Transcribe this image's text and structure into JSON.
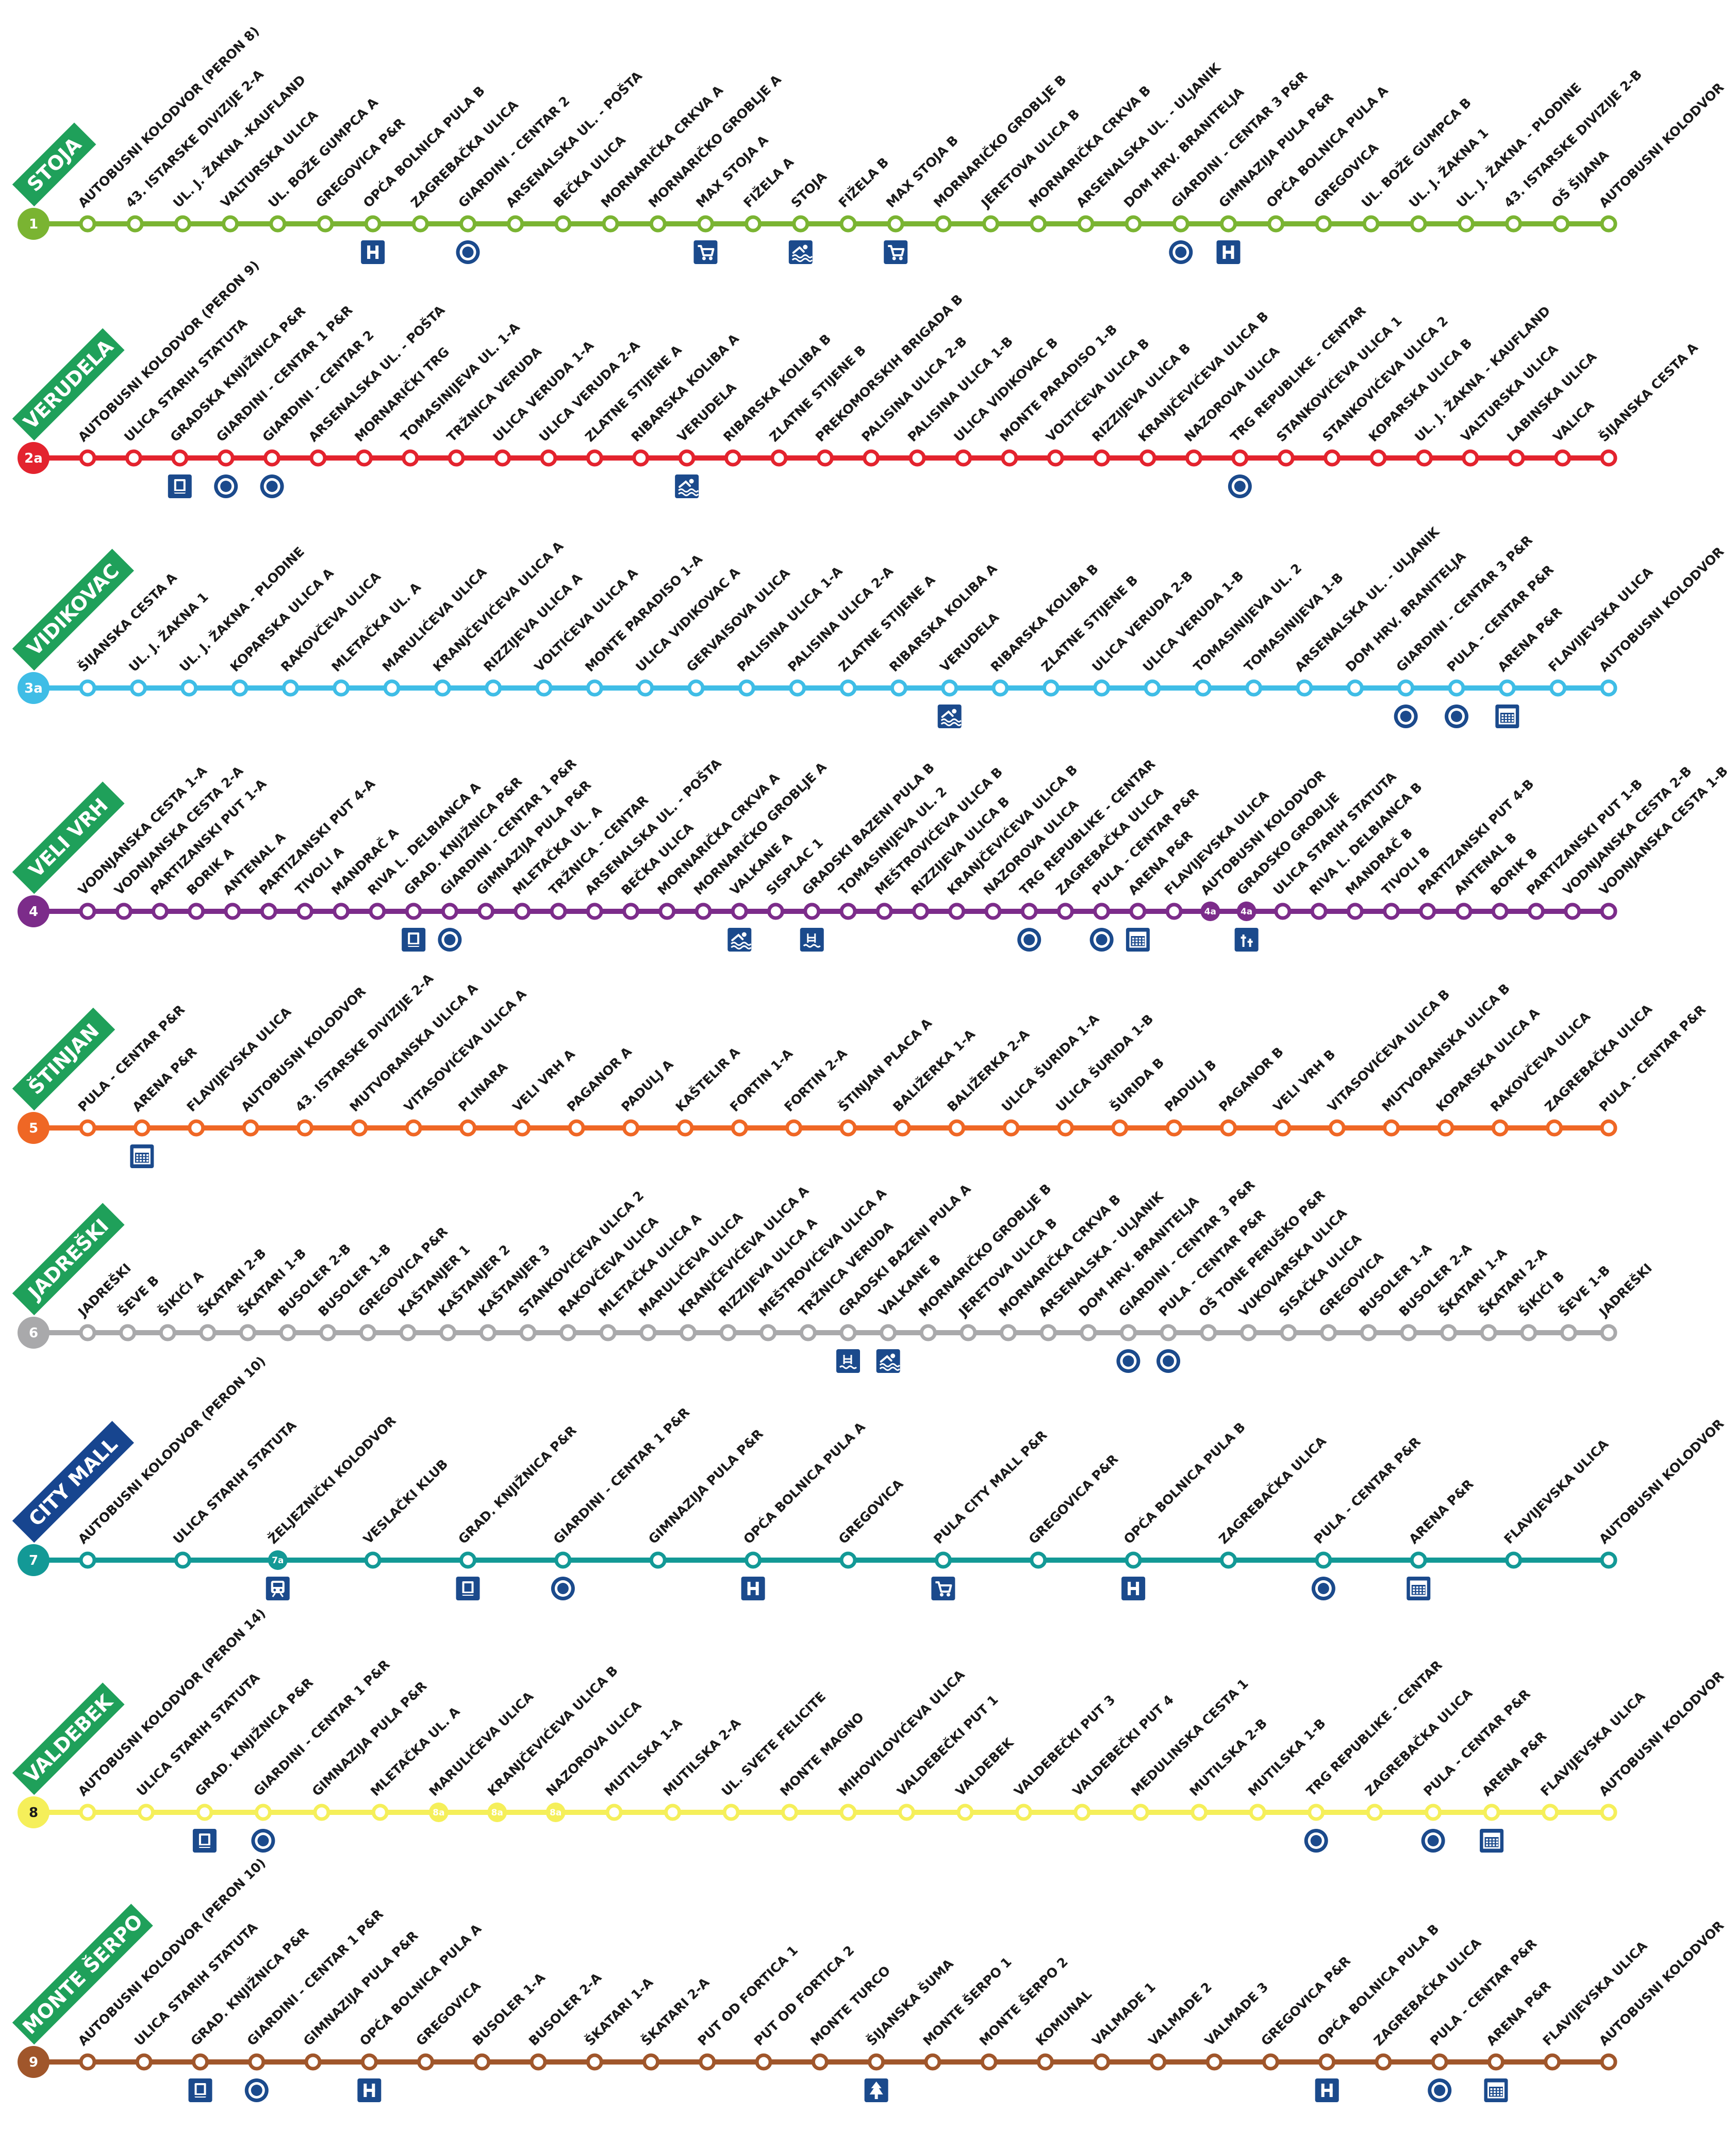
{
  "routes": [
    {
      "number": "1",
      "name": "STOJA",
      "color": "#7ab432",
      "banner_color": "#1fa05a",
      "num_text_color": "#ffffff",
      "stops": [
        "AUTOBUSNI KOLODVOR (PERON 8)",
        "43. ISTARSKE DIVIZIJE 2-A",
        "UL. J. ŽAKNA -KAUFLAND",
        "VALTURSKA ULICA",
        "UL. BOŽE GUMPCA A",
        "GREGOVICA P&R",
        "OPĆA BOLNICA PULA B",
        "ZAGREBAČKA ULICA",
        "GIARDINI - CENTAR 2",
        "ARSENALSKA UL. - POŠTA",
        "BEČKA ULICA",
        "MORNARIČKA CRKVA A",
        "MORNARIČKO GROBLJE A",
        "MAX STOJA A",
        "FIŽELA A",
        "STOJA",
        "FIŽELA B",
        "MAX STOJA B",
        "MORNARIČKO GROBLJE B",
        "JERETOVA ULICA B",
        "MORNARIČKA CRKVA B",
        "ARSENALSKA UL. - ULJANIK",
        "DOM HRV. BRANITELJA",
        "GIARDINI - CENTAR 3 P&R",
        "GIMNAZIJA PULA P&R",
        "OPĆA BOLNICA PULA A",
        "GREGOVICA",
        "UL. BOŽE GUMPCA B",
        "UL. J. ŽAKNA 1",
        "UL. J. ŽAKNA - PLODINE",
        "43. ISTARSKE DIVIZIJE 2-B",
        "OŠ ŠIJANA",
        "AUTOBUSNI KOLODVOR"
      ],
      "badges": [],
      "icons": [
        {
          "stop": 6,
          "type": "hospital-icon"
        },
        {
          "stop": 8,
          "type": "bus-stop-icon"
        },
        {
          "stop": 13,
          "type": "shopping-cart-icon"
        },
        {
          "stop": 15,
          "type": "swimming-icon"
        },
        {
          "stop": 17,
          "type": "shopping-cart-icon"
        },
        {
          "stop": 23,
          "type": "bus-stop-icon"
        },
        {
          "stop": 24,
          "type": "hospital-icon"
        }
      ]
    },
    {
      "number": "2a",
      "name": "VERUDELA",
      "color": "#e3232e",
      "banner_color": "#1fa05a",
      "num_text_color": "#ffffff",
      "stops": [
        "AUTOBUSNI KOLODVOR (PERON 9)",
        "ULICA STARIH STATUTA",
        "GRADSKA KNJIŽNICA P&R",
        "GIARDINI - CENTAR 1 P&R",
        "GIARDINI - CENTAR 2",
        "ARSENALSKA UL. - POŠTA",
        "MORNARIČKI TRG",
        "TOMASINIJEVA UL. 1-A",
        "TRŽNICA VERUDA",
        "ULICA VERUDA 1-A",
        "ULICA VERUDA 2-A",
        "ZLATNE STIJENE A",
        "RIBARSKA KOLIBA A",
        "VERUDELA",
        "RIBARSKA KOLIBA B",
        "ZLATNE STIJENE B",
        "PREKOMORSKIH BRIGADA B",
        "PALISINA ULICA 2-B",
        "PALISINA ULICA 1-B",
        "ULICA VIDIKOVAC B",
        "MONTE PARADISO 1-B",
        "VOLTIĆEVA ULICA B",
        "RIZZIJEVA ULICA B",
        "KRANJČEVIĆEVA ULICA B",
        "NAZOROVA ULICA",
        "TRG REPUBLIKE - CENTAR",
        "STANKOVIĆEVA ULICA 1",
        "STANKOVIĆEVA ULICA 2",
        "KOPARSKA ULICA B",
        "UL. J. ŽAKNA - KAUFLAND",
        "VALTURSKA ULICA",
        "LABINSKA ULICA",
        "VALICA",
        "ŠIJANSKA CESTA A"
      ],
      "badges": [],
      "icons": [
        {
          "stop": 2,
          "type": "library-icon"
        },
        {
          "stop": 3,
          "type": "bus-stop-icon"
        },
        {
          "stop": 4,
          "type": "bus-stop-icon"
        },
        {
          "stop": 13,
          "type": "swimming-icon"
        },
        {
          "stop": 25,
          "type": "bus-stop-icon"
        }
      ]
    },
    {
      "number": "3a",
      "name": "VIDIKOVAC",
      "color": "#3fbde6",
      "banner_color": "#1fa05a",
      "num_text_color": "#ffffff",
      "stops": [
        "ŠIJANSKA CESTA A",
        "UL. J. ŽAKNA 1",
        "UL. J. ŽAKNA - PLODINE",
        "KOPARSKA ULICA A",
        "RAKOVČEVA ULICA",
        "MLETAČKA UL. A",
        "MARULIĆEVA ULICA",
        "KRANJČEVIĆEVA ULICA A",
        "RIZZIJEVA ULICA A",
        "VOLTIĆEVA ULICA A",
        "MONTE PARADISO 1-A",
        "ULICA VIDIKOVAC A",
        "GERVAISOVA ULICA",
        "PALISINA ULICA 1-A",
        "PALISINA ULICA 2-A",
        "ZLATNE STIJENE A",
        "RIBARSKA KOLIBA A",
        "VERUDELA",
        "RIBARSKA KOLIBA B",
        "ZLATNE STIJENE B",
        "ULICA VERUDA 2-B",
        "ULICA VERUDA 1-B",
        "TOMASINIJEVA UL. 2",
        "TOMASINIJEVA 1-B",
        "ARSENALSKA UL. - ULJANIK",
        "DOM HRV. BRANITELJA",
        "GIARDINI - CENTAR 3 P&R",
        "PULA - CENTAR P&R",
        "ARENA P&R",
        "FLAVIJEVSKA ULICA",
        "AUTOBUSNI KOLODVOR"
      ],
      "badges": [],
      "icons": [
        {
          "stop": 17,
          "type": "swimming-icon"
        },
        {
          "stop": 26,
          "type": "bus-stop-icon"
        },
        {
          "stop": 27,
          "type": "bus-stop-icon"
        },
        {
          "stop": 28,
          "type": "parking-icon"
        }
      ]
    },
    {
      "number": "4",
      "name": "VELI VRH",
      "color": "#7c2c8a",
      "banner_color": "#1fa05a",
      "num_text_color": "#ffffff",
      "stops": [
        "VODNJANSKA CESTA 1-A",
        "VODNJANSKA CESTA 2-A",
        "PARTIZANSKI PUT 1-A",
        "BORIK A",
        "ANTENAL A",
        "PARTIZANSKI PUT 4-A",
        "TIVOLI A",
        "MANDRAČ A",
        "RIVA L. DELBIANCA A",
        "GRAD. KNJIŽNICA P&R",
        "GIARDINI - CENTAR 1 P&R",
        "GIMNAZIJA PULA P&R",
        "MLETAČKA UL. A",
        "TRŽNICA - CENTAR",
        "ARSENALSKA UL. - POŠTA",
        "BEČKA ULICA",
        "MORNARIČKA CRKVA A",
        "MORNARIČKO GROBLJE A",
        "VALKANE A",
        "SISPLAC 1",
        "GRADSKI BAZENI PULA B",
        "TOMASINIJEVA UL. 2",
        "MEŠTROVIĆEVA ULICA B",
        "RIZZIJEVA ULICA B",
        "KRANJČEVIĆEVA ULICA B",
        "NAZOROVA ULICA",
        "TRG REPUBLIKE - CENTAR",
        "ZAGREBAČKA ULICA",
        "PULA - CENTAR P&R",
        "ARENA P&R",
        "FLAVIJEVSKA ULICA",
        "AUTOBUSNI KOLODVOR",
        "GRADSKO GROBLJE",
        "ULICA STARIH STATUTA",
        "RIVA L. DELBIANCA B",
        "MANDRAČ B",
        "TIVOLI B",
        "PARTIZANSKI PUT 4-B",
        "ANTENAL B",
        "BORIK B",
        "PARTIZANSKI PUT 1-B",
        "VODNJANSKA CESTA 2-B",
        "VODNJANSKA CESTA 1-B"
      ],
      "badges": [
        {
          "stop": 31,
          "label": "4a"
        },
        {
          "stop": 32,
          "label": "4a"
        }
      ],
      "icons": [
        {
          "stop": 9,
          "type": "library-icon"
        },
        {
          "stop": 10,
          "type": "bus-stop-icon"
        },
        {
          "stop": 18,
          "type": "swimming-icon"
        },
        {
          "stop": 20,
          "type": "pool-icon"
        },
        {
          "stop": 26,
          "type": "bus-stop-icon"
        },
        {
          "stop": 28,
          "type": "bus-stop-icon"
        },
        {
          "stop": 29,
          "type": "parking-icon"
        },
        {
          "stop": 32,
          "type": "cemetery-icon"
        }
      ]
    },
    {
      "number": "5",
      "name": "ŠTINJAN",
      "color": "#ef6725",
      "banner_color": "#1fa05a",
      "num_text_color": "#ffffff",
      "stops": [
        "PULA - CENTAR P&R",
        "ARENA P&R",
        "FLAVIJEVSKA ULICA",
        "AUTOBUSNI KOLODVOR",
        "43. ISTARSKE DIVIZIJE 2-A",
        "MUTVORANSKA ULICA A",
        "VITASOVIĆEVA ULICA A",
        "PLINARA",
        "VELI VRH A",
        "PAGANOR A",
        "PADULJ A",
        "KAŠTELIR A",
        "FORTIN 1-A",
        "FORTIN 2-A",
        "ŠTINJAN PLACA A",
        "BALIŽERKA 1-A",
        "BALIŽERKA 2-A",
        "ULICA ŠURIDA 1-A",
        "ULICA ŠURIDA 1-B",
        "ŠURIDA B",
        "PADULJ B",
        "PAGANOR B",
        "VELI VRH B",
        "VITASOVIĆEVA ULICA B",
        "MUTVORANSKA ULICA B",
        "KOPARSKA ULICA A",
        "RAKOVČEVA ULICA",
        "ZAGREBAČKA ULICA",
        "PULA - CENTAR P&R"
      ],
      "badges": [],
      "icons": [
        {
          "stop": 1,
          "type": "parking-icon"
        }
      ]
    },
    {
      "number": "6",
      "name": "JADREŠKI",
      "color": "#a9a9ab",
      "banner_color": "#1fa05a",
      "num_text_color": "#ffffff",
      "stops": [
        "JADREŠKI",
        "ŠEVE B",
        "ŠIKIĆI A",
        "ŠKATARI 2-B",
        "ŠKATARI 1-B",
        "BUSOLER 2-B",
        "BUSOLER 1-B",
        "GREGOVICA P&R",
        "KAŠTANJER 1",
        "KAŠTANJER 2",
        "KAŠTANJER 3",
        "STANKOVIĆEVA ULICA 2",
        "RAKOVČEVA ULICA",
        "MLETAČKA ULICA A",
        "MARULIĆEVA ULICA",
        "KRANJČEVIĆEVA ULICA A",
        "RIZZIJEVA ULICA A",
        "MEŠTROVIĆEVA ULICA A",
        "TRŽNICA VERUDA",
        "GRADSKI BAZENI PULA A",
        "VALKANE B",
        "MORNARIČKO GROBLJE B",
        "JERETOVA ULICA B",
        "MORNARIČKA CRKVA B",
        "ARSENALSKA - ULJANIK",
        "DOM HRV. BRANITELJA",
        "GIARDINI - CENTAR 3 P&R",
        "PULA - CENTAR P&R",
        "OŠ TONE PERUŠKO P&R",
        "VUKOVARSKA ULICA",
        "SISAČKA ULICA",
        "GREGOVICA",
        "BUSOLER 1-A",
        "BUSOLER 2-A",
        "ŠKATARI 1-A",
        "ŠKATARI 2-A",
        "ŠIKIĆI B",
        "ŠEVE 1-B",
        "JADREŠKI"
      ],
      "badges": [],
      "icons": [
        {
          "stop": 19,
          "type": "pool-icon"
        },
        {
          "stop": 20,
          "type": "swimming-icon"
        },
        {
          "stop": 26,
          "type": "bus-stop-icon"
        },
        {
          "stop": 27,
          "type": "bus-stop-icon"
        }
      ]
    },
    {
      "number": "7",
      "name": "CITY MALL",
      "color": "#139996",
      "banner_color": "#17458f",
      "num_text_color": "#ffffff",
      "stops": [
        "AUTOBUSNI KOLODVOR (PERON 10)",
        "ULICA STARIH STATUTA",
        "ŽELJEZNIČKI KOLODVOR",
        "VESLAČKI KLUB",
        "GRAD. KNJIŽNICA P&R",
        "GIARDINI - CENTAR 1 P&R",
        "GIMNAZIJA PULA P&R",
        "OPĆA BOLNICA PULA A",
        "GREGOVICA",
        "PULA CITY MALL P&R",
        "GREGOVICA P&R",
        "OPĆA BOLNICA PULA B",
        "ZAGREBAČKA ULICA",
        "PULA - CENTAR P&R",
        "ARENA P&R",
        "FLAVIJEVSKA ULICA",
        "AUTOBUSNI KOLODVOR"
      ],
      "badges": [
        {
          "stop": 2,
          "label": "7a"
        }
      ],
      "icons": [
        {
          "stop": 2,
          "type": "train-icon"
        },
        {
          "stop": 4,
          "type": "library-icon"
        },
        {
          "stop": 5,
          "type": "bus-stop-icon"
        },
        {
          "stop": 7,
          "type": "hospital-icon"
        },
        {
          "stop": 9,
          "type": "shopping-cart-icon"
        },
        {
          "stop": 11,
          "type": "hospital-icon"
        },
        {
          "stop": 13,
          "type": "bus-stop-icon"
        },
        {
          "stop": 14,
          "type": "parking-icon"
        }
      ]
    },
    {
      "number": "8",
      "name": "VALDEBEK",
      "color": "#f5ef5a",
      "banner_color": "#1fa05a",
      "num_text_color": "#1a1a1a",
      "stops": [
        "AUTOBUSNI KOLODVOR (PERON 14)",
        "ULICA STARIH STATUTA",
        "GRAD. KNJIŽNICA P&R",
        "GIARDINI - CENTAR 1 P&R",
        "GIMNAZIJA PULA P&R",
        "MLETAČKA UL. A",
        "MARULIĆEVA ULICA",
        "KRANJČEVIĆEVA ULICA B",
        "NAZOROVA ULICA",
        "MUTILSKA 1-A",
        "MUTILSKA 2-A",
        "UL. SVETE FELICITE",
        "MONTE MAGNO",
        "MIHOVILOVIĆEVA ULICA",
        "VALDEBEČKI PUT 1",
        "VALDEBEK",
        "VALDEBEČKI PUT 3",
        "VALDEBEČKI PUT 4",
        "MEDULINSKA CESTA 1",
        "MUTILSKA 2-B",
        "MUTILSKA 1-B",
        "TRG REPUBLIKE - CENTAR",
        "ZAGREBAČKA ULICA",
        "PULA - CENTAR P&R",
        "ARENA P&R",
        "FLAVIJEVSKA ULICA",
        "AUTOBUSNI KOLODVOR"
      ],
      "badges": [
        {
          "stop": 6,
          "label": "8a"
        },
        {
          "stop": 7,
          "label": "8a"
        },
        {
          "stop": 8,
          "label": "8a"
        }
      ],
      "icons": [
        {
          "stop": 2,
          "type": "library-icon"
        },
        {
          "stop": 3,
          "type": "bus-stop-icon"
        },
        {
          "stop": 21,
          "type": "bus-stop-icon"
        },
        {
          "stop": 23,
          "type": "bus-stop-icon"
        },
        {
          "stop": 24,
          "type": "parking-icon"
        }
      ]
    },
    {
      "number": "9",
      "name": "MONTE ŠERPO",
      "color": "#a0562b",
      "banner_color": "#1fa05a",
      "num_text_color": "#ffffff",
      "stops": [
        "AUTOBUSNI KOLODVOR (PERON 10)",
        "ULICA STARIH STATUTA",
        "GRAD. KNJIŽNICA P&R",
        "GIARDINI - CENTAR 1 P&R",
        "GIMNAZIJA PULA P&R",
        "OPĆA BOLNICA PULA A",
        "GREGOVICA",
        "BUSOLER 1-A",
        "BUSOLER 2-A",
        "ŠKATARI 1-A",
        "ŠKATARI 2-A",
        "PUT OD FORTICA 1",
        "PUT OD FORTICA 2",
        "MONTE TURCO",
        "ŠIJANSKA ŠUMA",
        "MONTE ŠERPO 1",
        "MONTE ŠERPO 2",
        "KOMUNAL",
        "VALMADE 1",
        "VALMADE 2",
        "VALMADE 3",
        "GREGOVICA P&R",
        "OPĆA BOLNICA PULA B",
        "ZAGREBAČKA ULICA",
        "PULA - CENTAR P&R",
        "ARENA P&R",
        "FLAVIJEVSKA ULICA",
        "AUTOBUSNI KOLODVOR"
      ],
      "badges": [],
      "icons": [
        {
          "stop": 2,
          "type": "library-icon"
        },
        {
          "stop": 3,
          "type": "bus-stop-icon"
        },
        {
          "stop": 5,
          "type": "hospital-icon"
        },
        {
          "stop": 14,
          "type": "forest-icon"
        },
        {
          "stop": 22,
          "type": "hospital-icon"
        },
        {
          "stop": 24,
          "type": "bus-stop-icon"
        },
        {
          "stop": 25,
          "type": "parking-icon"
        }
      ]
    }
  ],
  "icon_color": "#1b4a8c"
}
